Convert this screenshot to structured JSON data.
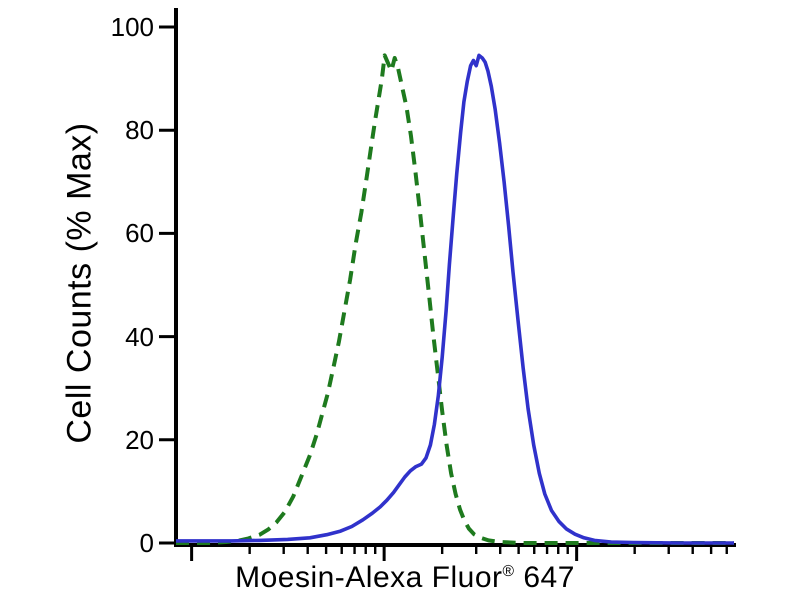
{
  "figure": {
    "background": "#ffffff"
  },
  "xlabel_parts": {
    "prefix": "Moesin-Alexa Fluor",
    "registered": "®",
    "suffix": " 647"
  },
  "chart_data": {
    "type": "line",
    "subtype": "flow-cytometry-histogram-overlay",
    "title": "",
    "xlabel": "Moesin-Alexa Fluor® 647",
    "ylabel": "Cell Counts (% Max)",
    "grid": false,
    "legend": "none",
    "axis_color": "#000000",
    "x_axis": {
      "scale": "log",
      "tick_labels_visible": false,
      "units": "normalized 0-1 across axis width",
      "major_ticks": [
        0.028,
        0.373,
        0.718
      ],
      "minor_ticks": [
        0.132,
        0.193,
        0.236,
        0.269,
        0.297,
        0.32,
        0.34,
        0.357,
        0.477,
        0.538,
        0.581,
        0.614,
        0.642,
        0.665,
        0.685,
        0.702,
        0.822,
        0.883,
        0.926,
        0.959,
        0.987
      ]
    },
    "y_axis": {
      "ticks": [
        0,
        20,
        40,
        60,
        80,
        100
      ],
      "range": [
        0,
        100
      ]
    },
    "series": [
      {
        "name": "dashed-green",
        "style": "dashed",
        "color": "#1e7a1e",
        "peak_x": 0.374,
        "peak_y": 94.5,
        "points": [
          [
            0.0,
            0
          ],
          [
            0.06,
            0
          ],
          [
            0.09,
            0.2
          ],
          [
            0.11,
            0.4
          ],
          [
            0.13,
            0.9
          ],
          [
            0.15,
            1.6
          ],
          [
            0.165,
            2.6
          ],
          [
            0.18,
            4
          ],
          [
            0.195,
            6
          ],
          [
            0.21,
            9
          ],
          [
            0.225,
            13
          ],
          [
            0.24,
            17
          ],
          [
            0.252,
            21
          ],
          [
            0.262,
            25
          ],
          [
            0.272,
            29
          ],
          [
            0.282,
            34
          ],
          [
            0.292,
            39
          ],
          [
            0.302,
            45
          ],
          [
            0.312,
            51
          ],
          [
            0.322,
            58
          ],
          [
            0.332,
            64
          ],
          [
            0.342,
            71
          ],
          [
            0.35,
            77
          ],
          [
            0.357,
            82
          ],
          [
            0.363,
            86
          ],
          [
            0.369,
            90
          ],
          [
            0.374,
            94.5
          ],
          [
            0.38,
            93
          ],
          [
            0.386,
            91.5
          ],
          [
            0.392,
            94
          ],
          [
            0.398,
            92
          ],
          [
            0.405,
            88.5
          ],
          [
            0.413,
            84.5
          ],
          [
            0.421,
            79
          ],
          [
            0.429,
            72
          ],
          [
            0.437,
            64.5
          ],
          [
            0.445,
            56.5
          ],
          [
            0.453,
            48.5
          ],
          [
            0.461,
            40.5
          ],
          [
            0.469,
            33
          ],
          [
            0.477,
            25.5
          ],
          [
            0.485,
            19
          ],
          [
            0.493,
            13.5
          ],
          [
            0.501,
            9.5
          ],
          [
            0.509,
            6.5
          ],
          [
            0.517,
            4.3
          ],
          [
            0.525,
            2.8
          ],
          [
            0.534,
            1.7
          ],
          [
            0.546,
            1
          ],
          [
            0.56,
            0.5
          ],
          [
            0.58,
            0.2
          ],
          [
            0.62,
            0
          ],
          [
            0.76,
            0
          ],
          [
            1.0,
            0
          ]
        ]
      },
      {
        "name": "solid-blue",
        "style": "solid",
        "color": "#3032cb",
        "peak_x": 0.543,
        "peak_y": 94.5,
        "points": [
          [
            0.0,
            0.4
          ],
          [
            0.1,
            0.4
          ],
          [
            0.15,
            0.5
          ],
          [
            0.2,
            0.7
          ],
          [
            0.24,
            1
          ],
          [
            0.27,
            1.6
          ],
          [
            0.295,
            2.3
          ],
          [
            0.315,
            3.2
          ],
          [
            0.335,
            4.5
          ],
          [
            0.352,
            5.8
          ],
          [
            0.366,
            7
          ],
          [
            0.378,
            8.3
          ],
          [
            0.39,
            9.8
          ],
          [
            0.4,
            11.3
          ],
          [
            0.41,
            12.8
          ],
          [
            0.42,
            14
          ],
          [
            0.43,
            14.8
          ],
          [
            0.44,
            15.3
          ],
          [
            0.448,
            16.5
          ],
          [
            0.456,
            19
          ],
          [
            0.463,
            23
          ],
          [
            0.47,
            28.5
          ],
          [
            0.477,
            36
          ],
          [
            0.484,
            45
          ],
          [
            0.49,
            54
          ],
          [
            0.497,
            63.5
          ],
          [
            0.503,
            71.5
          ],
          [
            0.51,
            79.5
          ],
          [
            0.516,
            85.5
          ],
          [
            0.522,
            89.5
          ],
          [
            0.528,
            92.5
          ],
          [
            0.533,
            93.5
          ],
          [
            0.538,
            92.5
          ],
          [
            0.543,
            94.5
          ],
          [
            0.549,
            94
          ],
          [
            0.554,
            93.2
          ],
          [
            0.559,
            91.5
          ],
          [
            0.565,
            88.5
          ],
          [
            0.572,
            84
          ],
          [
            0.58,
            77.5
          ],
          [
            0.588,
            70
          ],
          [
            0.596,
            61.5
          ],
          [
            0.604,
            52.5
          ],
          [
            0.613,
            43
          ],
          [
            0.622,
            34
          ],
          [
            0.631,
            26
          ],
          [
            0.641,
            19
          ],
          [
            0.651,
            13.5
          ],
          [
            0.661,
            9.5
          ],
          [
            0.673,
            6.3
          ],
          [
            0.686,
            4.2
          ],
          [
            0.7,
            2.7
          ],
          [
            0.715,
            1.7
          ],
          [
            0.731,
            1
          ],
          [
            0.75,
            0.5
          ],
          [
            0.78,
            0.2
          ],
          [
            0.82,
            0.1
          ],
          [
            0.9,
            0
          ],
          [
            1.0,
            0
          ]
        ]
      }
    ]
  }
}
